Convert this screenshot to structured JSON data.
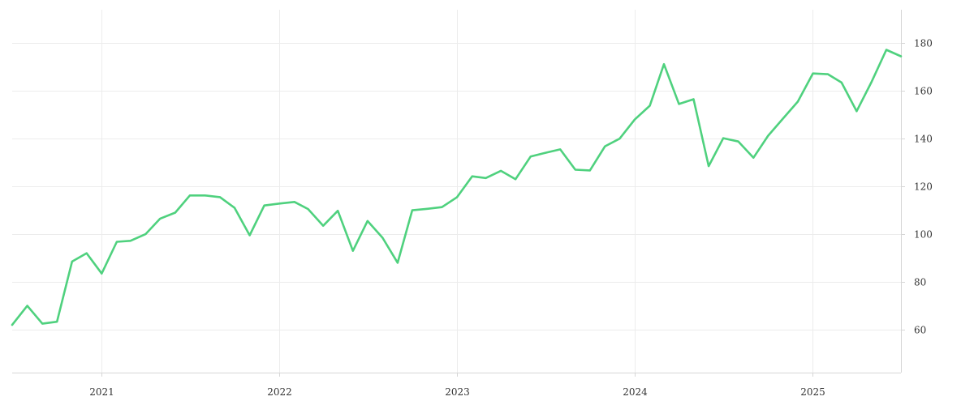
{
  "chart_data": {
    "type": "line",
    "title": "",
    "xlabel": "",
    "ylabel": "",
    "grid": true,
    "y_axis_side": "right",
    "x_range": [
      "2020-07-01",
      "2025-07-01"
    ],
    "ylim": [
      42,
      194
    ],
    "x_ticks": [
      {
        "date": "2021-01-01",
        "label": "2021"
      },
      {
        "date": "2022-01-01",
        "label": "2022"
      },
      {
        "date": "2023-01-01",
        "label": "2023"
      },
      {
        "date": "2024-01-01",
        "label": "2024"
      },
      {
        "date": "2025-01-01",
        "label": "2025"
      }
    ],
    "y_ticks": [
      {
        "value": 60,
        "label": "60"
      },
      {
        "value": 80,
        "label": "80"
      },
      {
        "value": 100,
        "label": "100"
      },
      {
        "value": 120,
        "label": "120"
      },
      {
        "value": 140,
        "label": "140"
      },
      {
        "value": 160,
        "label": "160"
      },
      {
        "value": 180,
        "label": "180"
      }
    ],
    "series": [
      {
        "color": "#4fd17e",
        "x": [
          "2020-07-01",
          "2020-08-01",
          "2020-09-01",
          "2020-10-01",
          "2020-11-01",
          "2020-12-01",
          "2021-01-01",
          "2021-02-01",
          "2021-03-01",
          "2021-04-01",
          "2021-05-01",
          "2021-06-01",
          "2021-07-01",
          "2021-08-01",
          "2021-09-01",
          "2021-10-01",
          "2021-11-01",
          "2021-12-01",
          "2022-01-01",
          "2022-02-01",
          "2022-03-01",
          "2022-04-01",
          "2022-05-01",
          "2022-06-01",
          "2022-07-01",
          "2022-08-01",
          "2022-09-01",
          "2022-10-01",
          "2022-11-01",
          "2022-12-01",
          "2023-01-01",
          "2023-02-01",
          "2023-03-01",
          "2023-04-01",
          "2023-05-01",
          "2023-06-01",
          "2023-07-01",
          "2023-08-01",
          "2023-09-01",
          "2023-10-01",
          "2023-11-01",
          "2023-12-01",
          "2024-01-01",
          "2024-02-01",
          "2024-03-01",
          "2024-04-01",
          "2024-05-01",
          "2024-06-01",
          "2024-07-01",
          "2024-08-01",
          "2024-09-01",
          "2024-10-01",
          "2024-11-01",
          "2024-12-01",
          "2025-01-01",
          "2025-02-01",
          "2025-03-01",
          "2025-04-01",
          "2025-05-01",
          "2025-06-01",
          "2025-07-01"
        ],
        "y": [
          62,
          70,
          62.5,
          63.3,
          88.5,
          92,
          83.5,
          96.8,
          97.2,
          100,
          106.5,
          109,
          116.2,
          116.2,
          115.5,
          111,
          99.5,
          112,
          112.8,
          113.5,
          110.5,
          103.5,
          109.8,
          93,
          105.5,
          98.5,
          88,
          110,
          110.6,
          111.3,
          115.5,
          124.2,
          123.5,
          126.5,
          123,
          132.5,
          134,
          135.5,
          127,
          126.7,
          136.8,
          140,
          148,
          153.8,
          171.2,
          154.5,
          156.5,
          128.5,
          140.2,
          138.8,
          132,
          141.2,
          148.5,
          155.5,
          167.3,
          167,
          163.5,
          151.5,
          163.5,
          177.2,
          174.5
        ]
      }
    ]
  }
}
